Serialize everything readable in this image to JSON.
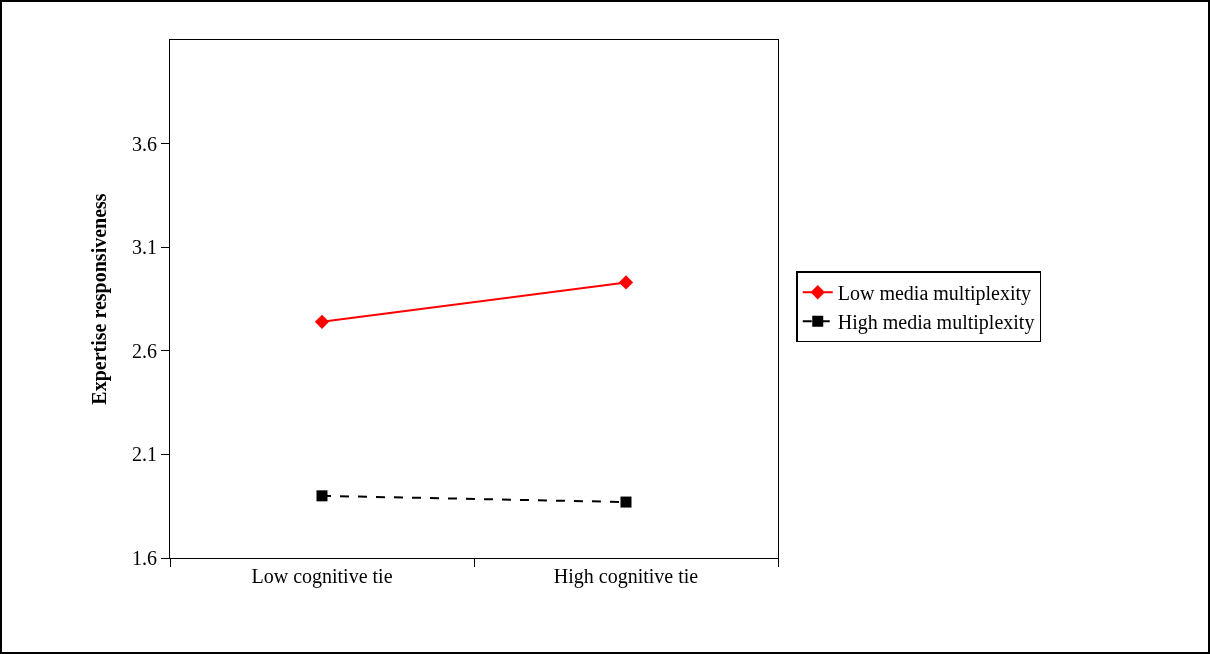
{
  "chart_data": {
    "type": "line",
    "ylabel": "Expertise responsiveness",
    "categories": [
      "Low cognitive tie",
      "High cognitive tie"
    ],
    "series": [
      {
        "name": "Low media multiplexity",
        "color": "#ff0000",
        "values": [
          2.74,
          2.93
        ],
        "marker": "diamond",
        "line_style": "solid"
      },
      {
        "name": "High media multiplexity",
        "color": "#000000",
        "values": [
          1.9,
          1.87
        ],
        "marker": "square",
        "line_style": "dashed"
      }
    ],
    "ylim": [
      1.6,
      4.1
    ],
    "yticks": [
      1.6,
      2.1,
      2.6,
      3.1,
      3.6
    ],
    "grid": false,
    "legend": "right"
  }
}
